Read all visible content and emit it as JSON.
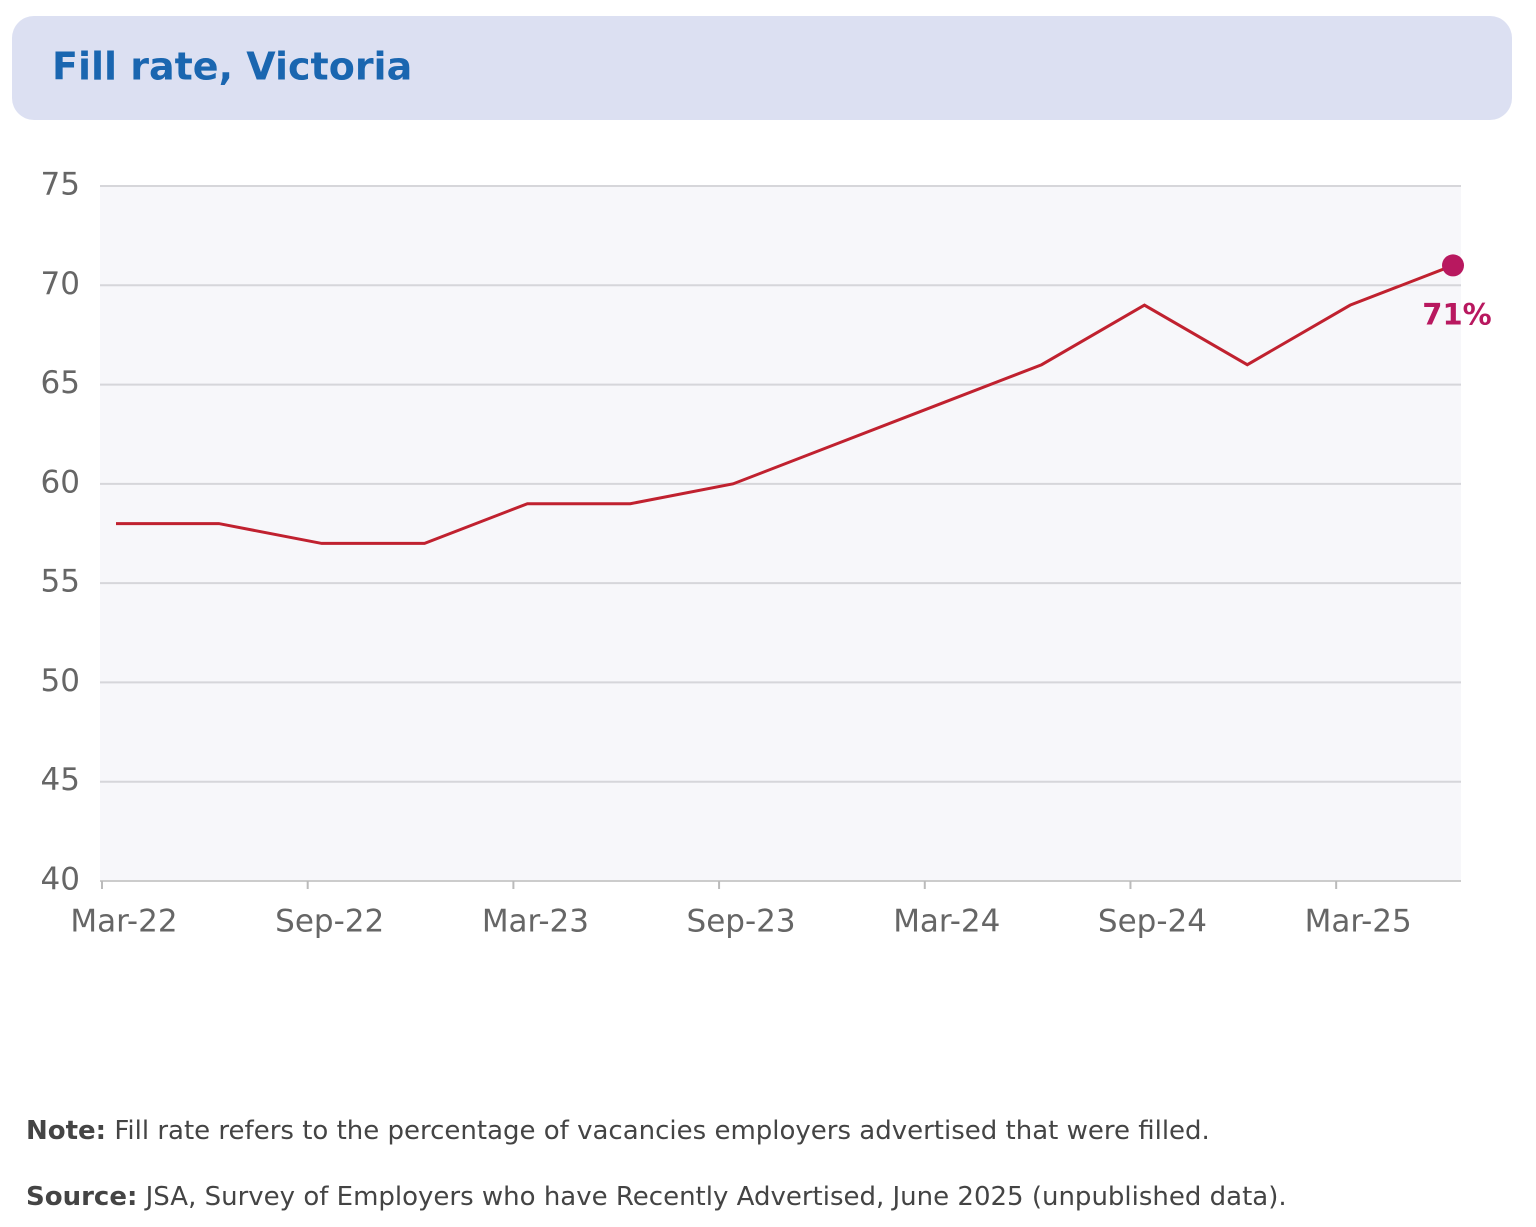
{
  "chart_data": {
    "type": "line",
    "title": "Fill rate, Victoria",
    "categories": [
      "Mar-22",
      null,
      "Sep-22",
      null,
      "Mar-23",
      null,
      "Sep-23",
      null,
      "Mar-24",
      null,
      "Sep-24",
      null,
      "Mar-25",
      null
    ],
    "series": [
      {
        "name": "Fill rate",
        "color": "#c0212f",
        "values": [
          58,
          58,
          57,
          57,
          59,
          59,
          60,
          62,
          64,
          66,
          69,
          66,
          69,
          71
        ],
        "value_labels": [
          null,
          null,
          null,
          null,
          null,
          null,
          null,
          null,
          null,
          null,
          null,
          null,
          null,
          "71%"
        ]
      }
    ],
    "label_color": "#b8185f",
    "ylim": [
      40,
      75
    ],
    "yticks": [
      40,
      45,
      50,
      55,
      60,
      65,
      70,
      75
    ],
    "grid": true
  },
  "notes": [
    {
      "label": "Note:",
      "text": " Fill rate refers to the percentage of vacancies employers advertised that were filled."
    },
    {
      "label": "Source:",
      "text": " JSA, Survey of Employers who have Recently Advertised, June 2025 (unpublished data)."
    }
  ]
}
